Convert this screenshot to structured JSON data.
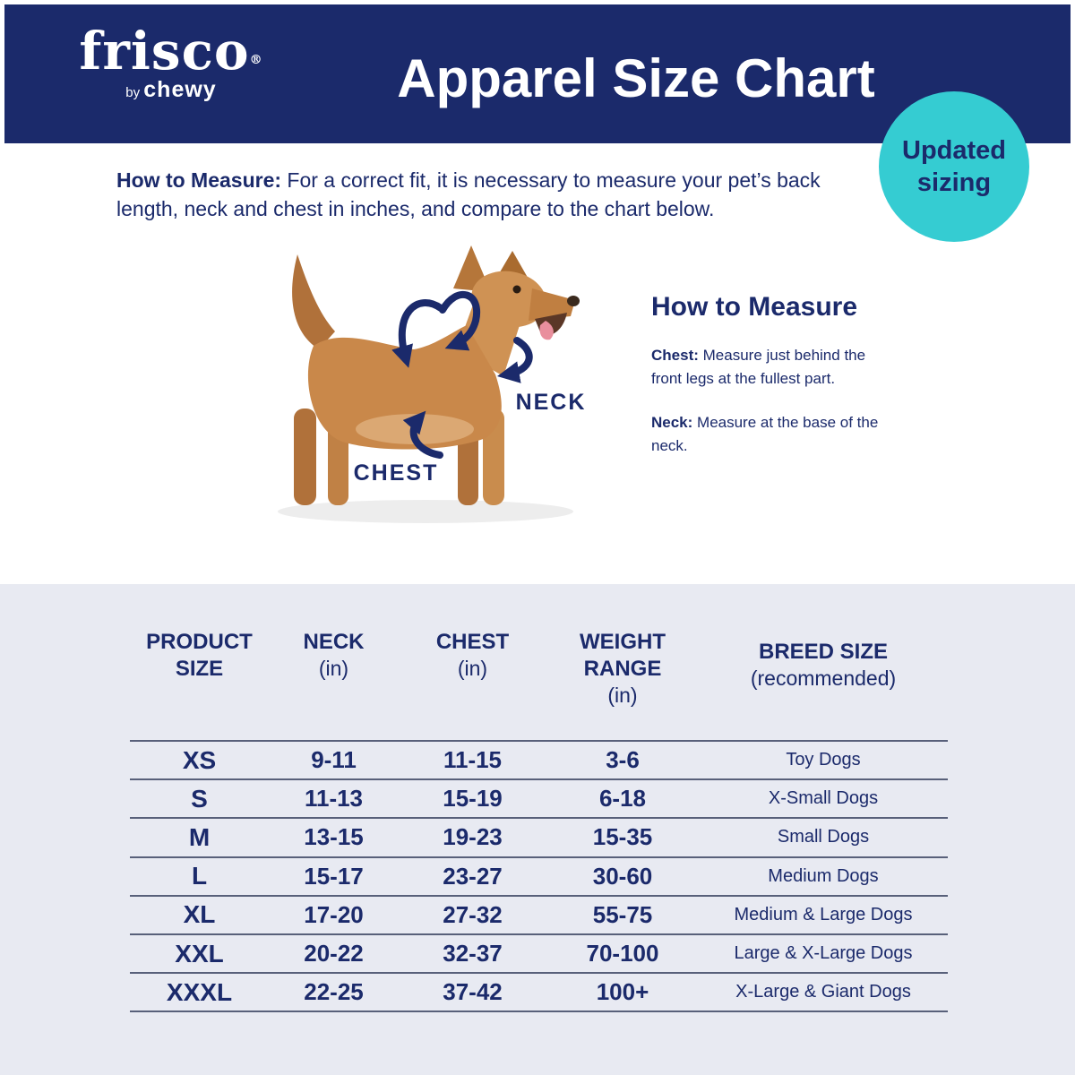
{
  "header": {
    "logo": {
      "brand": "frisco",
      "registered": "®",
      "byline_by": "by",
      "byline_brand": "chewy"
    },
    "title": "Apparel Size Chart"
  },
  "badge": {
    "line1": "Updated",
    "line2": "sizing"
  },
  "intro": {
    "bold": "How to Measure:",
    "text": " For a correct fit, it is necessary to measure your pet’s back length, neck and chest in inches, and compare to the chart below."
  },
  "diagram": {
    "neck_label": "NECK",
    "chest_label": "CHEST"
  },
  "measure_panel": {
    "heading": "How to Measure",
    "items": [
      {
        "bold": "Chest:",
        "text": " Measure just behind the front legs at the fullest part."
      },
      {
        "bold": "Neck:",
        "text": " Measure at the base of the neck."
      }
    ]
  },
  "size_table": {
    "columns": [
      {
        "key": "product-size",
        "title": "PRODUCT SIZE",
        "sub": ""
      },
      {
        "key": "neck",
        "title": "NECK",
        "sub": "(in)"
      },
      {
        "key": "chest",
        "title": "CHEST",
        "sub": "(in)"
      },
      {
        "key": "weight-range",
        "title": "WEIGHT RANGE",
        "sub": "(in)"
      },
      {
        "key": "breed-size",
        "title": "BREED SIZE",
        "sub": "(recommended)"
      }
    ],
    "rows": [
      {
        "size": "XS",
        "neck": "9-11",
        "chest": "11-15",
        "weight": "3-6",
        "breed": "Toy Dogs"
      },
      {
        "size": "S",
        "neck": "11-13",
        "chest": "15-19",
        "weight": "6-18",
        "breed": "X-Small Dogs"
      },
      {
        "size": "M",
        "neck": "13-15",
        "chest": "19-23",
        "weight": "15-35",
        "breed": "Small Dogs"
      },
      {
        "size": "L",
        "neck": "15-17",
        "chest": "23-27",
        "weight": "30-60",
        "breed": "Medium Dogs"
      },
      {
        "size": "XL",
        "neck": "17-20",
        "chest": "27-32",
        "weight": "55-75",
        "breed": "Medium & Large Dogs"
      },
      {
        "size": "XXL",
        "neck": "20-22",
        "chest": "32-37",
        "weight": "70-100",
        "breed": "Large & X-Large Dogs"
      },
      {
        "size": "XXXL",
        "neck": "22-25",
        "chest": "37-42",
        "weight": "100+",
        "breed": "X-Large & Giant Dogs"
      }
    ]
  },
  "colors": {
    "navy": "#1b2a6b",
    "teal": "#35ccd2",
    "table_bg": "#e8eaf2",
    "line": "#58607a"
  }
}
